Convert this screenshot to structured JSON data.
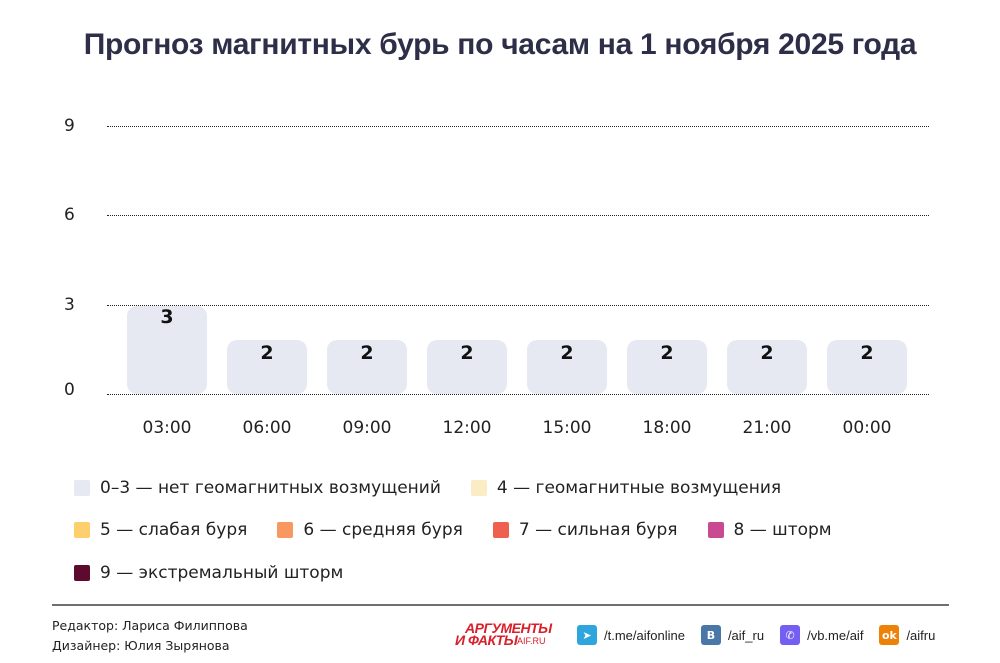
{
  "title": "Прогноз магнитных бурь по часам на 1 ноября 2025 года",
  "chart_data": {
    "type": "bar",
    "title": "Прогноз магнитных бурь по часам на 1 ноября 2025 года",
    "xlabel": "",
    "ylabel": "",
    "categories": [
      "03:00",
      "06:00",
      "09:00",
      "12:00",
      "15:00",
      "18:00",
      "21:00",
      "00:00"
    ],
    "values": [
      3,
      2,
      2,
      2,
      2,
      2,
      2,
      2
    ],
    "ylim": [
      0,
      9
    ],
    "yticks": [
      0,
      3,
      6,
      9
    ],
    "grid": true,
    "bar_color": "#e6e8f2",
    "legend_position": "bottom",
    "legend": [
      {
        "label": "0–3 — нет геомагнитных возмущений",
        "color": "#e6e8f2"
      },
      {
        "label": "4 — геомагнитные возмущения",
        "color": "#fcecc6"
      },
      {
        "label": "5 — слабая буря",
        "color": "#fdd06d"
      },
      {
        "label": "6 — средняя буря",
        "color": "#f8975f"
      },
      {
        "label": "7 — сильная буря",
        "color": "#f0604f"
      },
      {
        "label": "8 — шторм",
        "color": "#c94a91"
      },
      {
        "label": "9 — экстремальный шторм",
        "color": "#5c0b2f"
      }
    ]
  },
  "yticks": [
    "9",
    "6",
    "3",
    "0"
  ],
  "bars": [
    {
      "label": "3",
      "time": "03:00"
    },
    {
      "label": "2",
      "time": "06:00"
    },
    {
      "label": "2",
      "time": "09:00"
    },
    {
      "label": "2",
      "time": "12:00"
    },
    {
      "label": "2",
      "time": "15:00"
    },
    {
      "label": "2",
      "time": "18:00"
    },
    {
      "label": "2",
      "time": "21:00"
    },
    {
      "label": "2",
      "time": "00:00"
    }
  ],
  "legend": [
    {
      "label": "0–3 — нет геомагнитных возмущений",
      "color": "#e6e8f2"
    },
    {
      "label": "4 — геомагнитные возмущения",
      "color": "#fcecc6"
    },
    {
      "label": "5 — слабая буря",
      "color": "#fdd06d"
    },
    {
      "label": "6 — средняя буря",
      "color": "#f8975f"
    },
    {
      "label": "7 — сильная буря",
      "color": "#f0604f"
    },
    {
      "label": "8 — шторм",
      "color": "#c94a91"
    },
    {
      "label": "9 — экстремальный шторм",
      "color": "#5c0b2f"
    }
  ],
  "footer": {
    "editor": "Редактор: Лариса Филиппова",
    "designer": "Дизайнер: Юлия Зырянова",
    "logo_top": "АРГУМЕНТЫ",
    "logo_bottom": "И ФАКТЫ",
    "logo_sub": "AIF.RU",
    "social": [
      {
        "icon": "telegram-icon",
        "glyph": "➤",
        "color": "#2ea6dd",
        "text": "/t.me/aifonline"
      },
      {
        "icon": "vk-icon",
        "glyph": "B",
        "color": "#4a76a8",
        "text": "/aif_ru"
      },
      {
        "icon": "viber-icon",
        "glyph": "✆",
        "color": "#7360f2",
        "text": "/vb.me/aif"
      },
      {
        "icon": "odnoklassniki-icon",
        "glyph": "ok",
        "color": "#ee8208",
        "text": "/aifru"
      }
    ]
  }
}
